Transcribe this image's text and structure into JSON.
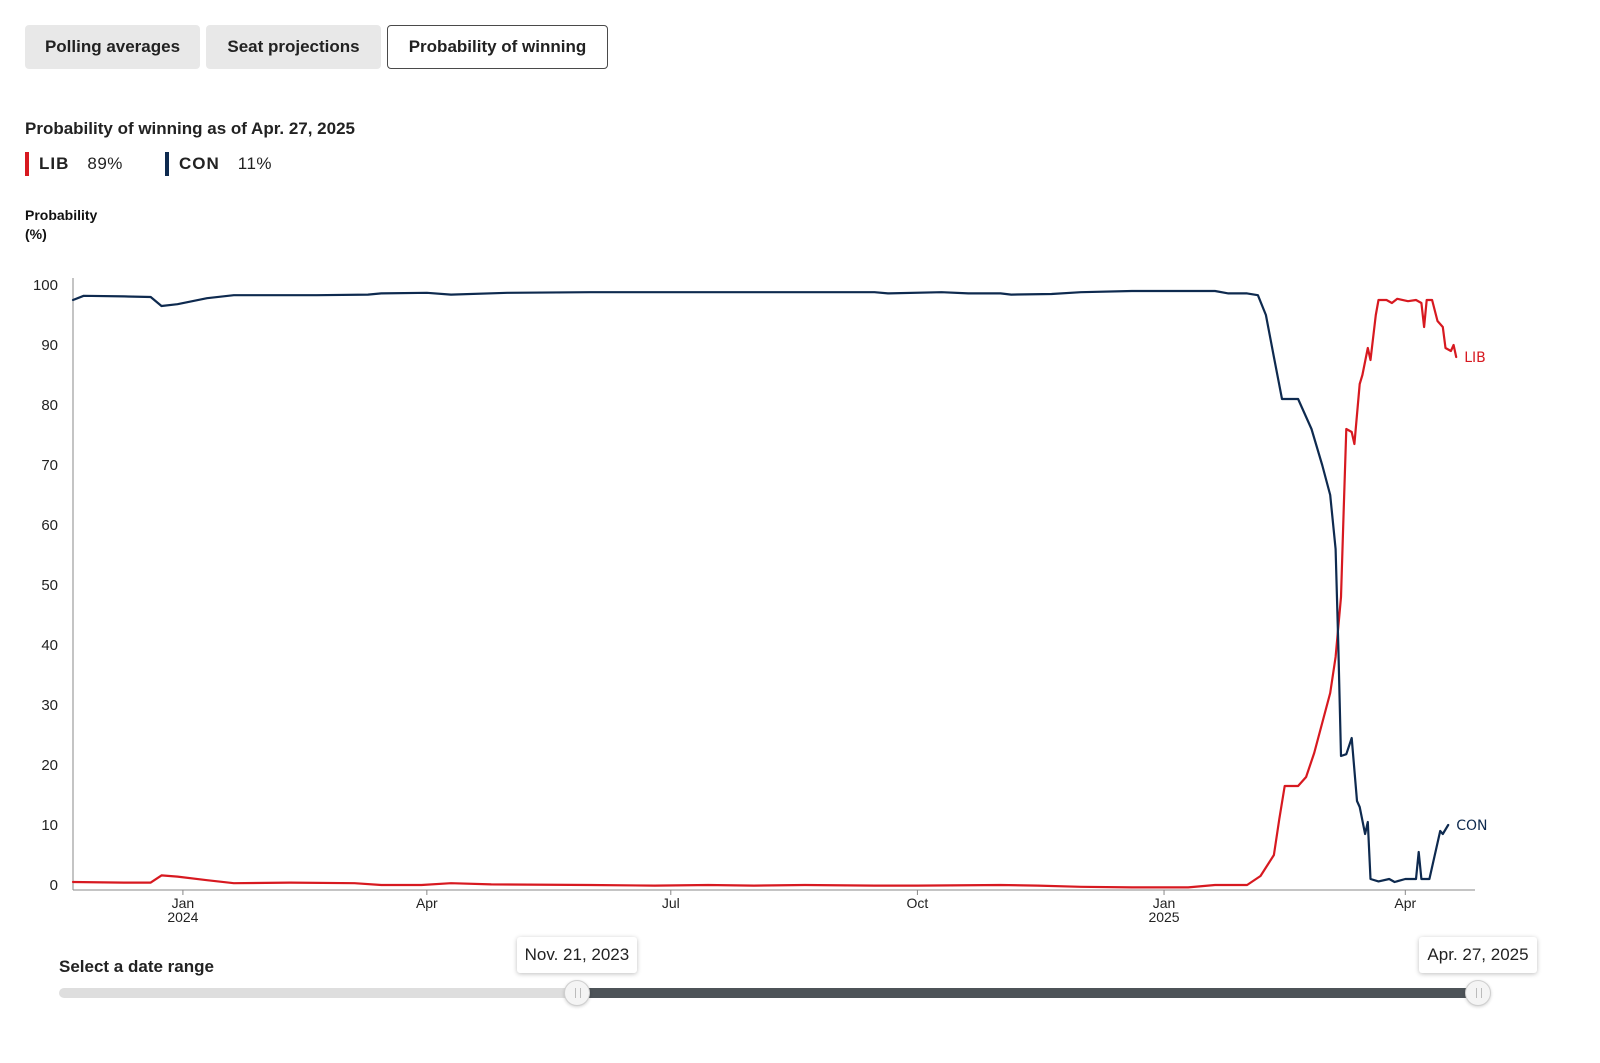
{
  "tabs": [
    {
      "label": "Polling averages",
      "active": false
    },
    {
      "label": "Seat projections",
      "active": false
    },
    {
      "label": "Probability of winning",
      "active": true
    }
  ],
  "headline": "Probability of winning as of Apr. 27, 2025",
  "legend": [
    {
      "party": "LIB",
      "value": "89%",
      "color": "#d71920"
    },
    {
      "party": "CON",
      "value": "11%",
      "color": "#0e2a4f"
    }
  ],
  "y_axis_label": [
    "Probability",
    "(%)"
  ],
  "chart_data": {
    "type": "line",
    "title": "Probability of winning as of Apr. 27, 2025",
    "ylabel": "Probability (%)",
    "xlabel": "",
    "x_range": [
      "2023-11-21",
      "2025-04-27"
    ],
    "ylim": [
      0,
      100
    ],
    "y_ticks": [
      0,
      10,
      20,
      30,
      40,
      50,
      60,
      70,
      80,
      90,
      100
    ],
    "x_ticks": [
      {
        "date": "2024-01-01",
        "label": "Jan",
        "sublabel": "2024"
      },
      {
        "date": "2024-04-01",
        "label": "Apr",
        "sublabel": ""
      },
      {
        "date": "2024-07-01",
        "label": "Jul",
        "sublabel": ""
      },
      {
        "date": "2024-10-01",
        "label": "Oct",
        "sublabel": ""
      },
      {
        "date": "2025-01-01",
        "label": "Jan",
        "sublabel": "2025"
      },
      {
        "date": "2025-04-01",
        "label": "Apr",
        "sublabel": ""
      }
    ],
    "grid": false,
    "series": [
      {
        "name": "LIB",
        "color": "#d71920",
        "end_label": "LIB",
        "points": [
          [
            "2023-11-21",
            0.5
          ],
          [
            "2023-12-10",
            0.4
          ],
          [
            "2023-12-20",
            0.4
          ],
          [
            "2023-12-24",
            1.6
          ],
          [
            "2023-12-30",
            1.4
          ],
          [
            "2024-01-10",
            0.8
          ],
          [
            "2024-01-20",
            0.3
          ],
          [
            "2024-02-10",
            0.4
          ],
          [
            "2024-03-05",
            0.3
          ],
          [
            "2024-03-15",
            0
          ],
          [
            "2024-03-30",
            0
          ],
          [
            "2024-04-10",
            0.3
          ],
          [
            "2024-04-25",
            0.1
          ],
          [
            "2024-06-01",
            0
          ],
          [
            "2024-06-25",
            -0.1
          ],
          [
            "2024-07-15",
            0
          ],
          [
            "2024-08-01",
            -0.1
          ],
          [
            "2024-08-20",
            0
          ],
          [
            "2024-09-15",
            -0.1
          ],
          [
            "2024-10-01",
            -0.1
          ],
          [
            "2024-11-01",
            0
          ],
          [
            "2024-11-15",
            -0.1
          ],
          [
            "2024-12-01",
            -0.3
          ],
          [
            "2024-12-20",
            -0.4
          ],
          [
            "2025-01-10",
            -0.4
          ],
          [
            "2025-01-20",
            0
          ],
          [
            "2025-02-01",
            0
          ],
          [
            "2025-02-06",
            1.5
          ],
          [
            "2025-02-11",
            5
          ],
          [
            "2025-02-13",
            11
          ],
          [
            "2025-02-15",
            16.5
          ],
          [
            "2025-02-20",
            16.5
          ],
          [
            "2025-02-23",
            18
          ],
          [
            "2025-02-26",
            22
          ],
          [
            "2025-03-01",
            27
          ],
          [
            "2025-03-04",
            32
          ],
          [
            "2025-03-06",
            38
          ],
          [
            "2025-03-08",
            48
          ],
          [
            "2025-03-09",
            62
          ],
          [
            "2025-03-10",
            76
          ],
          [
            "2025-03-12",
            75.5
          ],
          [
            "2025-03-13",
            73.5
          ],
          [
            "2025-03-15",
            83.5
          ],
          [
            "2025-03-16",
            85
          ],
          [
            "2025-03-18",
            89.5
          ],
          [
            "2025-03-19",
            87.5
          ],
          [
            "2025-03-21",
            95
          ],
          [
            "2025-03-22",
            97.5
          ],
          [
            "2025-03-25",
            97.5
          ],
          [
            "2025-03-27",
            97
          ],
          [
            "2025-03-29",
            97.7
          ],
          [
            "2025-04-02",
            97.3
          ],
          [
            "2025-04-05",
            97.5
          ],
          [
            "2025-04-07",
            97
          ],
          [
            "2025-04-08",
            93
          ],
          [
            "2025-04-09",
            97.5
          ],
          [
            "2025-04-11",
            97.5
          ],
          [
            "2025-04-13",
            94
          ],
          [
            "2025-04-15",
            93
          ],
          [
            "2025-04-16",
            89.5
          ],
          [
            "2025-04-18",
            89
          ],
          [
            "2025-04-19",
            90
          ],
          [
            "2025-04-20",
            88
          ]
        ]
      },
      {
        "name": "CON",
        "color": "#0e2a4f",
        "end_label": "CON",
        "points": [
          [
            "2023-11-21",
            97.5
          ],
          [
            "2023-11-25",
            98.2
          ],
          [
            "2023-12-10",
            98.1
          ],
          [
            "2023-12-20",
            98
          ],
          [
            "2023-12-24",
            96.5
          ],
          [
            "2023-12-30",
            96.8
          ],
          [
            "2024-01-10",
            97.8
          ],
          [
            "2024-01-20",
            98.3
          ],
          [
            "2024-02-20",
            98.3
          ],
          [
            "2024-03-10",
            98.4
          ],
          [
            "2024-03-15",
            98.6
          ],
          [
            "2024-04-01",
            98.7
          ],
          [
            "2024-04-10",
            98.4
          ],
          [
            "2024-05-01",
            98.7
          ],
          [
            "2024-06-01",
            98.8
          ],
          [
            "2024-07-01",
            98.8
          ],
          [
            "2024-08-01",
            98.8
          ],
          [
            "2024-09-01",
            98.8
          ],
          [
            "2024-09-15",
            98.8
          ],
          [
            "2024-09-20",
            98.6
          ],
          [
            "2024-10-10",
            98.8
          ],
          [
            "2024-10-20",
            98.6
          ],
          [
            "2024-11-01",
            98.6
          ],
          [
            "2024-11-05",
            98.4
          ],
          [
            "2024-11-20",
            98.5
          ],
          [
            "2024-12-01",
            98.8
          ],
          [
            "2024-12-20",
            99
          ],
          [
            "2025-01-20",
            99
          ],
          [
            "2025-01-25",
            98.6
          ],
          [
            "2025-02-01",
            98.6
          ],
          [
            "2025-02-05",
            98.3
          ],
          [
            "2025-02-08",
            95
          ],
          [
            "2025-02-11",
            88
          ],
          [
            "2025-02-14",
            81
          ],
          [
            "2025-02-20",
            81
          ],
          [
            "2025-02-25",
            76
          ],
          [
            "2025-03-01",
            70
          ],
          [
            "2025-03-04",
            65
          ],
          [
            "2025-03-06",
            56
          ],
          [
            "2025-03-07",
            40
          ],
          [
            "2025-03-08",
            21.5
          ],
          [
            "2025-03-10",
            21.8
          ],
          [
            "2025-03-12",
            24.5
          ],
          [
            "2025-03-14",
            14
          ],
          [
            "2025-03-15",
            13
          ],
          [
            "2025-03-17",
            8.5
          ],
          [
            "2025-03-18",
            10.5
          ],
          [
            "2025-03-19",
            1
          ],
          [
            "2025-03-22",
            0.6
          ],
          [
            "2025-03-26",
            1
          ],
          [
            "2025-03-28",
            0.5
          ],
          [
            "2025-04-01",
            1
          ],
          [
            "2025-04-05",
            1
          ],
          [
            "2025-04-06",
            5.5
          ],
          [
            "2025-04-07",
            1
          ],
          [
            "2025-04-10",
            1
          ],
          [
            "2025-04-12",
            5
          ],
          [
            "2025-04-14",
            9
          ],
          [
            "2025-04-15",
            8.5
          ],
          [
            "2025-04-17",
            10
          ]
        ]
      }
    ]
  },
  "date_range": {
    "label": "Select a date range",
    "start_label": "Nov. 21, 2023",
    "end_label": "Apr. 27, 2025",
    "start_fraction": 0.365,
    "end_fraction": 1.0,
    "track_color": "#dedede",
    "selected_color": "#4d5358"
  }
}
